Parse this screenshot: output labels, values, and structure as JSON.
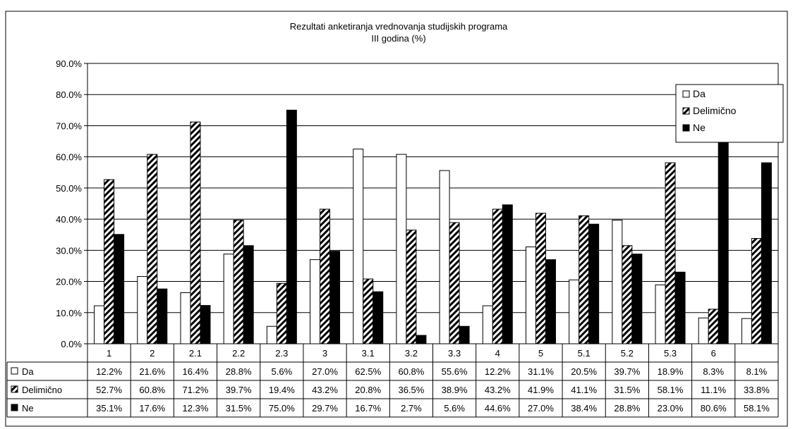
{
  "chart_data": {
    "type": "bar",
    "title": "Rezultati anketiranja vrednovanja studijskih programa",
    "subtitle": "III godina (%)",
    "categories": [
      "1",
      "2",
      "2.1",
      "2.2",
      "2.3",
      "3",
      "3.1",
      "3.2",
      "3.3",
      "4",
      "5",
      "5.1",
      "5.2",
      "5.3",
      "6",
      ""
    ],
    "series": [
      {
        "name": "Da",
        "pattern": "white",
        "values": [
          12.2,
          21.6,
          16.4,
          28.8,
          5.6,
          27.0,
          62.5,
          60.8,
          55.6,
          12.2,
          31.1,
          20.5,
          39.7,
          18.9,
          8.3,
          8.1
        ],
        "labels": [
          "12.2%",
          "21.6%",
          "16.4%",
          "28.8%",
          "5.6%",
          "27.0%",
          "62.5%",
          "60.8%",
          "55.6%",
          "12.2%",
          "31.1%",
          "20.5%",
          "39.7%",
          "18.9%",
          "8.3%",
          "8.1%"
        ]
      },
      {
        "name": "Delimično",
        "pattern": "diagonal-hatch",
        "values": [
          52.7,
          60.8,
          71.2,
          39.7,
          19.4,
          43.2,
          20.8,
          36.5,
          38.9,
          43.2,
          41.9,
          41.1,
          31.5,
          58.1,
          11.1,
          33.8
        ],
        "labels": [
          "52.7%",
          "60.8%",
          "71.2%",
          "39.7%",
          "19.4%",
          "43.2%",
          "20.8%",
          "36.5%",
          "38.9%",
          "43.2%",
          "41.9%",
          "41.1%",
          "31.5%",
          "58.1%",
          "11.1%",
          "33.8%"
        ]
      },
      {
        "name": "Ne",
        "pattern": "black",
        "values": [
          35.1,
          17.6,
          12.3,
          31.5,
          75.0,
          29.7,
          16.7,
          2.7,
          5.6,
          44.6,
          27.0,
          38.4,
          28.8,
          23.0,
          80.6,
          58.1
        ],
        "labels": [
          "35.1%",
          "17.6%",
          "12.3%",
          "31.5%",
          "75.0%",
          "29.7%",
          "16.7%",
          "2.7%",
          "5.6%",
          "44.6%",
          "27.0%",
          "38.4%",
          "28.8%",
          "23.0%",
          "80.6%",
          "58.1%"
        ]
      }
    ],
    "ylim": [
      0,
      90
    ],
    "yticks": [
      "0.0%",
      "10.0%",
      "20.0%",
      "30.0%",
      "40.0%",
      "50.0%",
      "60.0%",
      "70.0%",
      "80.0%",
      "90.0%"
    ],
    "grid": true,
    "legend": "top-right",
    "data_table": true
  }
}
